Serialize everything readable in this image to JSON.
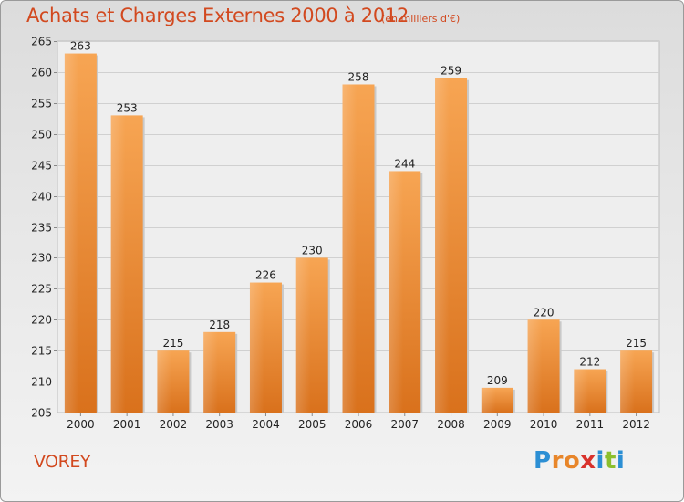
{
  "chart_data": {
    "type": "bar",
    "title": "Achats et Charges Externes 2000 à 2012",
    "subtitle": "(en milliers d'€)",
    "categories": [
      "2000",
      "2001",
      "2002",
      "2003",
      "2004",
      "2005",
      "2006",
      "2007",
      "2008",
      "2009",
      "2010",
      "2011",
      "2012"
    ],
    "values": [
      263,
      253,
      215,
      218,
      226,
      230,
      258,
      244,
      259,
      209,
      220,
      212,
      215
    ],
    "xlabel": "",
    "ylabel": "",
    "ylim": [
      205,
      265
    ],
    "yticks": [
      205,
      210,
      215,
      220,
      225,
      230,
      235,
      240,
      245,
      250,
      255,
      260,
      265
    ],
    "grid": true,
    "bar_color": "#f0923a"
  },
  "footer": {
    "location": "VOREY",
    "brand": "Proxiti",
    "brand_letters": [
      {
        "ch": "P",
        "color": "#2c8fd4"
      },
      {
        "ch": "r",
        "color": "#e8862a"
      },
      {
        "ch": "o",
        "color": "#e8862a"
      },
      {
        "ch": "x",
        "color": "#d9322c"
      },
      {
        "ch": "i",
        "color": "#2c8fd4"
      },
      {
        "ch": "t",
        "color": "#8cbf2e"
      },
      {
        "ch": "i",
        "color": "#2c8fd4"
      }
    ]
  }
}
